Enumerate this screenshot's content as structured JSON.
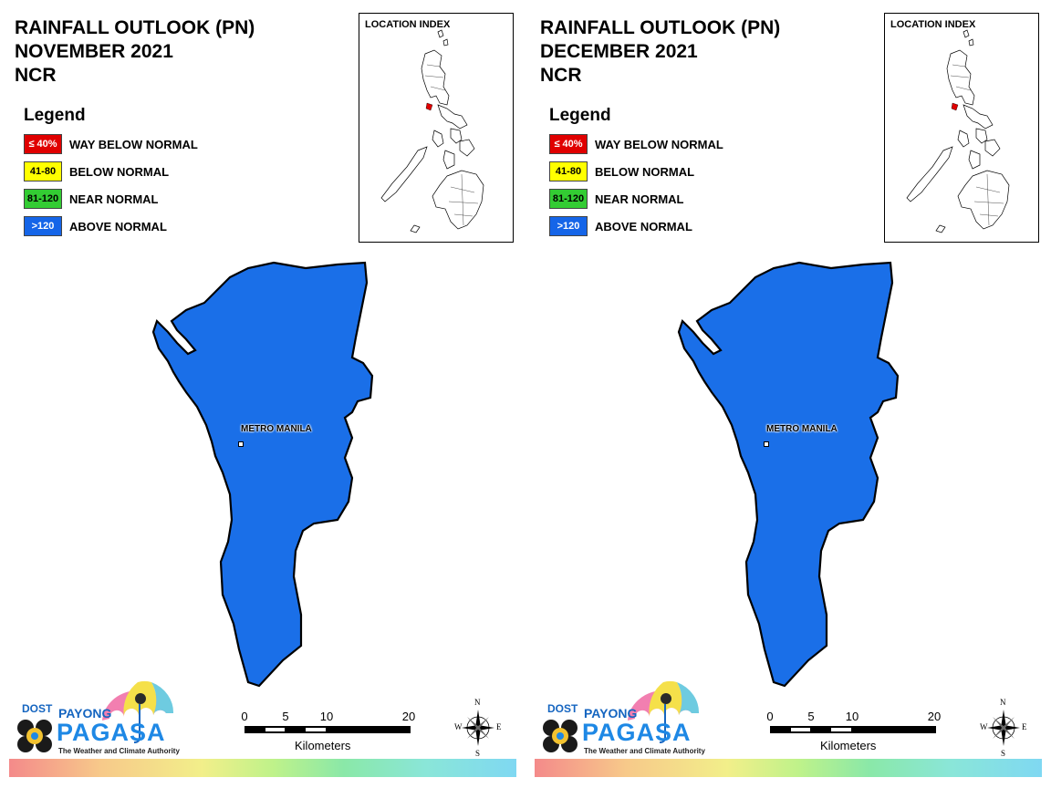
{
  "panels": [
    {
      "title_line1": "RAINFALL OUTLOOK (PN)",
      "title_line2": "NOVEMBER 2021",
      "title_line3": "NCR",
      "legend_title": "Legend",
      "legend": [
        {
          "swatch": "≤ 40%",
          "label": "WAY BELOW NORMAL",
          "color": "#e00000",
          "text_color": "#ffffff"
        },
        {
          "swatch": "41-80",
          "label": "BELOW NORMAL",
          "color": "#ffff00",
          "text_color": "#000000"
        },
        {
          "swatch": "81-120",
          "label": "NEAR NORMAL",
          "color": "#33cc33",
          "text_color": "#000000"
        },
        {
          "swatch": ">120",
          "label": "ABOVE NORMAL",
          "color": "#1565e8",
          "text_color": "#ffffff"
        }
      ],
      "location_index_title": "LOCATION INDEX",
      "region_label": "METRO MANILA",
      "region_category": "ABOVE NORMAL",
      "region_color": "#1a6fe8"
    },
    {
      "title_line1": "RAINFALL OUTLOOK (PN)",
      "title_line2": "DECEMBER 2021",
      "title_line3": "NCR",
      "legend_title": "Legend",
      "legend": [
        {
          "swatch": "≤ 40%",
          "label": "WAY BELOW NORMAL",
          "color": "#e00000",
          "text_color": "#ffffff"
        },
        {
          "swatch": "41-80",
          "label": "BELOW NORMAL",
          "color": "#ffff00",
          "text_color": "#000000"
        },
        {
          "swatch": "81-120",
          "label": "NEAR NORMAL",
          "color": "#33cc33",
          "text_color": "#000000"
        },
        {
          "swatch": ">120",
          "label": "ABOVE NORMAL",
          "color": "#1565e8",
          "text_color": "#ffffff"
        }
      ],
      "location_index_title": "LOCATION INDEX",
      "region_label": "METRO MANILA",
      "region_category": "ABOVE NORMAL",
      "region_color": "#1a6fe8"
    }
  ],
  "logo": {
    "dost": "DOST",
    "payong": "PAYONG",
    "pagasa": "PAGASA",
    "tagline": "The Weather and Climate Authority"
  },
  "scale": {
    "ticks": [
      "0",
      "5",
      "10",
      "20"
    ],
    "unit": "Kilometers"
  },
  "compass": {
    "n": "N",
    "s": "S",
    "e": "E",
    "w": "W"
  }
}
